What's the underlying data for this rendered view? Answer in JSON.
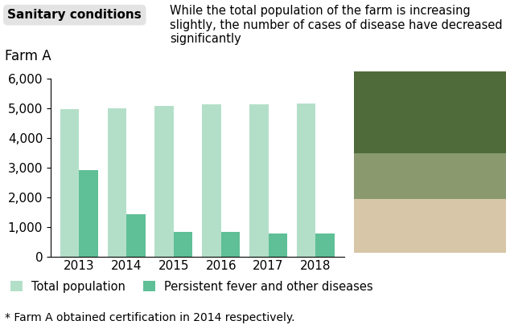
{
  "chart_data": {
    "type": "bar",
    "title": "Sanitary conditions",
    "subtitle": "While the total population of the farm is increasing slightly, the number of cases of disease have decreased significantly",
    "ylabel": "Farm A",
    "annotations": [
      "* Farm A obtained certification in 2014 respectively."
    ],
    "categories": [
      "2013",
      "2014",
      "2015",
      "2016",
      "2017",
      "2018"
    ],
    "series": [
      {
        "name": "Total population",
        "color": "#b3dfc9",
        "values": [
          4950,
          5000,
          5080,
          5120,
          5130,
          5150
        ]
      },
      {
        "name": "Persistent fever and other diseases",
        "color": "#5fbf97",
        "values": [
          2900,
          1420,
          830,
          830,
          760,
          760
        ]
      }
    ],
    "ylim": [
      0,
      6000
    ],
    "yticks": [
      0,
      {
        "value": 1000,
        "label": "1,000"
      },
      {
        "value": 2000,
        "label": "2,000"
      },
      {
        "value": 3000,
        "label": "3,000"
      },
      {
        "value": 4000,
        "label": "4,000"
      },
      {
        "value": 5000,
        "label": "5,000"
      },
      {
        "value": 6000,
        "label": "6,000"
      }
    ],
    "grid": false,
    "legend": "lower left"
  }
}
